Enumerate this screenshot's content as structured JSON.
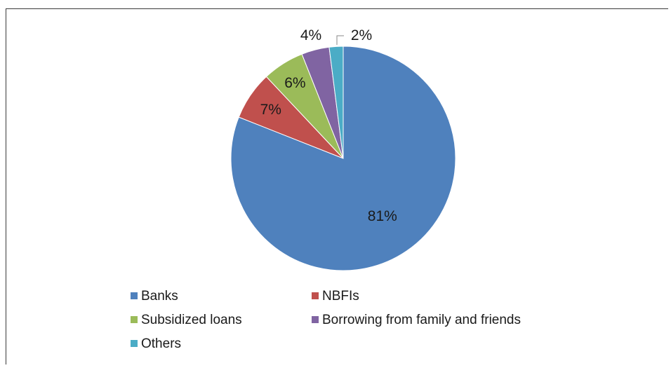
{
  "chart_data": {
    "type": "pie",
    "categories": [
      "Banks",
      "NBFIs",
      "Subsidized loans",
      "Borrowing from family and friends",
      "Others"
    ],
    "values": [
      81,
      7,
      6,
      4,
      2
    ],
    "data_labels": [
      "81%",
      "7%",
      "6%",
      "4%",
      "2%"
    ],
    "colors": [
      "#4f81bd",
      "#c0504d",
      "#9bbb59",
      "#8064a2",
      "#4bacc6"
    ],
    "title": "",
    "legend_position": "bottom"
  }
}
